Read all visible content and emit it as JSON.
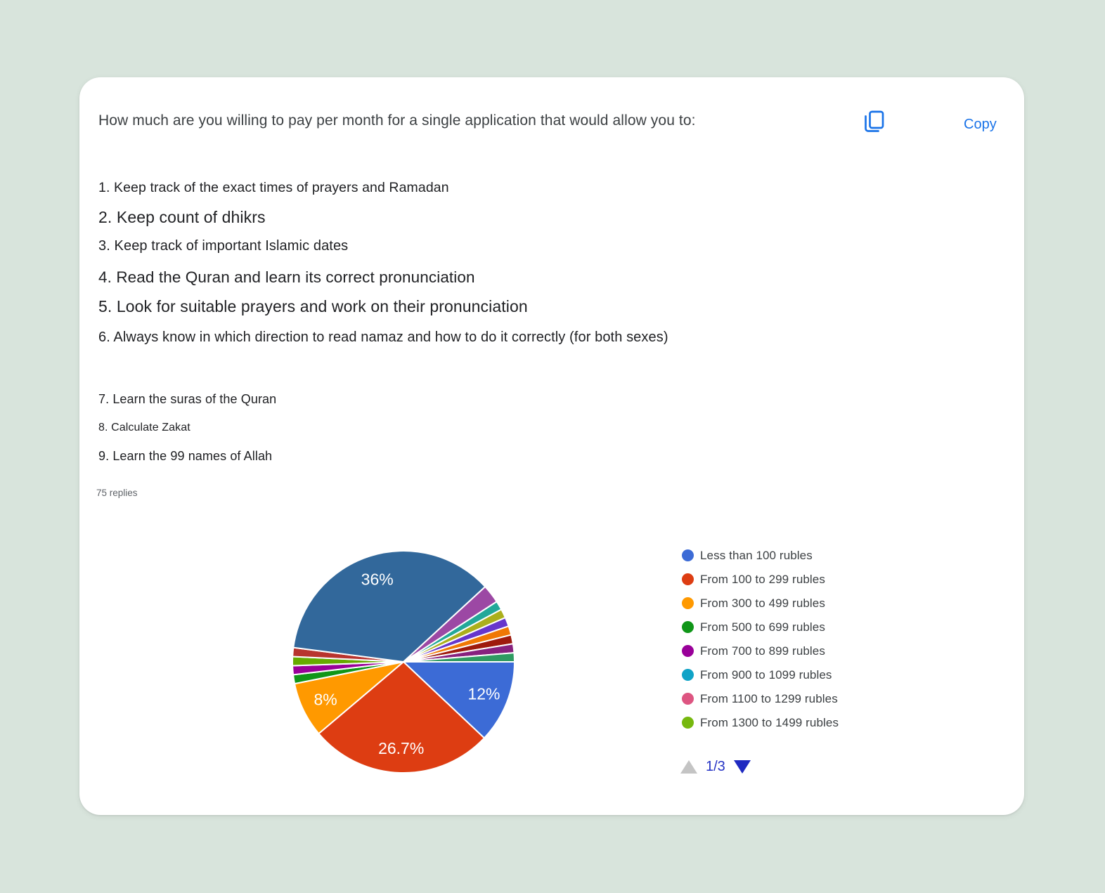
{
  "page": {
    "background_color": "#d8e4dc",
    "card_color": "#ffffff"
  },
  "header": {
    "title": "How much are you willing to pay per month for a single application that would allow you to:",
    "copy_label": "Copy",
    "accent_color": "#1a73e8"
  },
  "question_items": [
    "1. Keep track of the exact times of prayers and Ramadan",
    "2. Keep count of dhikrs",
    "3. Keep track of important Islamic dates",
    "4. Read the Quran and learn its correct pronunciation",
    "5. Look for suitable prayers and work on their pronunciation",
    "6. Always know in which direction to read namaz and how to do it correctly (for both sexes)",
    "7. Learn the suras of the Quran",
    "8. Calculate Zakat",
    "9. Learn the 99 names of Allah"
  ],
  "replies_label": "75 replies",
  "chart_data": {
    "type": "pie",
    "title": "",
    "legend_position": "right",
    "start_angle_deg": 90,
    "slices": [
      {
        "label": "Less than 100 rubles",
        "percent": 12,
        "display": "12%",
        "color": "#3C6BD6"
      },
      {
        "label": "From 100 to 299 rubles",
        "percent": 26.7,
        "display": "26.7%",
        "color": "#DD3D12"
      },
      {
        "label": "From 300 to 499 rubles",
        "percent": 8,
        "display": "8%",
        "color": "#FF9900"
      },
      {
        "label": "From 500 to 699 rubles",
        "percent": 1.3,
        "color": "#109618"
      },
      {
        "label": "From 700 to 899 rubles",
        "percent": 1.3,
        "color": "#990099"
      },
      {
        "label": "From 1300 to 1499 rubles",
        "percent": 1.3,
        "color": "#66AA00"
      },
      {
        "label": "",
        "percent": 1.3,
        "color": "#B8342E"
      },
      {
        "label": "",
        "percent": 36,
        "display": "36%",
        "color": "#32689B"
      },
      {
        "label": "",
        "percent": 2.7,
        "color": "#9C48A4"
      },
      {
        "label": "",
        "percent": 1.3,
        "color": "#23A899"
      },
      {
        "label": "",
        "percent": 1.3,
        "color": "#ABAF1C"
      },
      {
        "label": "",
        "percent": 1.3,
        "color": "#6636CC"
      },
      {
        "label": "",
        "percent": 1.3,
        "color": "#F07804"
      },
      {
        "label": "",
        "percent": 1.3,
        "color": "#9E1A0D"
      },
      {
        "label": "",
        "percent": 1.3,
        "color": "#87217E"
      },
      {
        "label": "",
        "percent": 1.3,
        "color": "#2F9B62"
      }
    ],
    "legend": [
      {
        "label": "Less than 100 rubles",
        "color": "#3C6BD6"
      },
      {
        "label": "From 100 to 299 rubles",
        "color": "#DD3D12"
      },
      {
        "label": "From 300 to 499 rubles",
        "color": "#FF9900"
      },
      {
        "label": "From 500 to 699 rubles",
        "color": "#109618"
      },
      {
        "label": "From 700 to 899 rubles",
        "color": "#990099"
      },
      {
        "label": "From 900 to 1099 rubles",
        "color": "#0FA3C7"
      },
      {
        "label": "From 1100 to 1299 rubles",
        "color": "#DD5581"
      },
      {
        "label": "From 1300 to 1499 rubles",
        "color": "#76B80E"
      }
    ]
  },
  "pagination": {
    "label": "1/3",
    "up_arrow_color": "#c4c4c4",
    "down_arrow_color": "#1f2ac1",
    "text_color": "#2432c4"
  }
}
